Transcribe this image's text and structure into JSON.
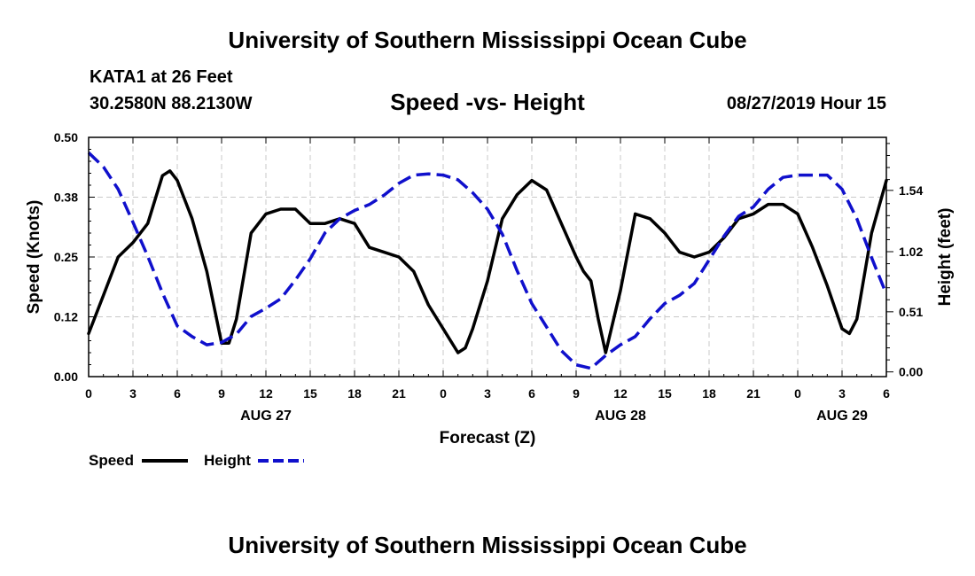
{
  "page": {
    "top_title": "University of Southern Mississippi Ocean Cube",
    "bottom_title": "University of Southern Mississippi Ocean Cube",
    "station": "KATA1 at 26 Feet",
    "coords": "30.2580N 88.2130W",
    "forecast_time": "08/27/2019 Hour 15"
  },
  "chart_data": {
    "type": "line",
    "title": "Speed -vs- Height",
    "xlabel": "Forecast (Z)",
    "ylabel": "Speed (Knots)",
    "y2label": "Height (feet)",
    "x_unit": "hours",
    "xlim": [
      0,
      54
    ],
    "ylim": [
      0,
      0.5
    ],
    "y2lim": [
      -0.04,
      1.99
    ],
    "x_ticks": [
      0,
      3,
      6,
      9,
      12,
      15,
      18,
      21,
      24,
      27,
      30,
      33,
      36,
      39,
      42,
      45,
      48,
      51,
      54
    ],
    "x_tick_labels": [
      "0",
      "3",
      "6",
      "9",
      "12",
      "15",
      "18",
      "21",
      "0",
      "3",
      "6",
      "9",
      "12",
      "15",
      "18",
      "21",
      "0",
      "3",
      "6"
    ],
    "date_labels": [
      {
        "x": 12,
        "label": "AUG 27"
      },
      {
        "x": 36,
        "label": "AUG 28"
      },
      {
        "x": 51,
        "label": "AUG 29"
      }
    ],
    "y_ticks": [
      0,
      0.125,
      0.25,
      0.375,
      0.5
    ],
    "y_tick_labels": [
      "0.00",
      "0.12",
      "0.25",
      "0.38",
      "0.50"
    ],
    "y2_ticks": [
      0,
      0.51,
      1.02,
      1.54
    ],
    "y2_tick_labels": [
      "0.00",
      "0.51",
      "1.02",
      "1.54"
    ],
    "grid": true,
    "legend_position": "bottom-left",
    "series": [
      {
        "name": "Speed",
        "axis": "left",
        "color": "#000000",
        "dash": "solid",
        "x": [
          0,
          1,
          2,
          3,
          4,
          5,
          5.5,
          6,
          7,
          8,
          9,
          9.5,
          10,
          11,
          12,
          13,
          14,
          15,
          16,
          17,
          18,
          19,
          20,
          21,
          22,
          23,
          24,
          25,
          25.5,
          26,
          27,
          28,
          29,
          30,
          31,
          32,
          33,
          33.5,
          34,
          34.5,
          35,
          36,
          37,
          38,
          39,
          40,
          41,
          42,
          43,
          44,
          45,
          46,
          47,
          48,
          49,
          50,
          51,
          51.5,
          52,
          53,
          54
        ],
        "values": [
          0.09,
          0.17,
          0.25,
          0.28,
          0.32,
          0.42,
          0.43,
          0.41,
          0.33,
          0.22,
          0.07,
          0.07,
          0.12,
          0.3,
          0.34,
          0.35,
          0.35,
          0.32,
          0.32,
          0.33,
          0.32,
          0.27,
          0.26,
          0.25,
          0.22,
          0.15,
          0.1,
          0.05,
          0.06,
          0.1,
          0.2,
          0.33,
          0.38,
          0.41,
          0.39,
          0.32,
          0.25,
          0.22,
          0.2,
          0.12,
          0.05,
          0.18,
          0.34,
          0.33,
          0.3,
          0.26,
          0.25,
          0.26,
          0.29,
          0.33,
          0.34,
          0.36,
          0.36,
          0.34,
          0.27,
          0.19,
          0.1,
          0.09,
          0.12,
          0.3,
          0.41
        ]
      },
      {
        "name": "Height",
        "axis": "right",
        "color": "#1010cc",
        "dash": "dashed",
        "x": [
          0,
          1,
          2,
          3,
          4,
          5,
          6,
          7,
          8,
          9,
          10,
          11,
          12,
          13,
          14,
          15,
          16,
          17,
          18,
          19,
          20,
          21,
          22,
          23,
          24,
          25,
          26,
          27,
          28,
          29,
          30,
          31,
          32,
          33,
          34,
          35,
          36,
          37,
          38,
          39,
          40,
          41,
          42,
          43,
          44,
          45,
          46,
          47,
          48,
          49,
          50,
          51,
          52,
          53,
          54
        ],
        "values": [
          1.86,
          1.74,
          1.55,
          1.27,
          0.98,
          0.67,
          0.39,
          0.3,
          0.23,
          0.25,
          0.32,
          0.47,
          0.54,
          0.62,
          0.78,
          0.96,
          1.18,
          1.3,
          1.37,
          1.42,
          1.5,
          1.6,
          1.67,
          1.68,
          1.67,
          1.63,
          1.52,
          1.38,
          1.17,
          0.86,
          0.58,
          0.38,
          0.18,
          0.06,
          0.03,
          0.14,
          0.23,
          0.3,
          0.45,
          0.58,
          0.65,
          0.75,
          0.95,
          1.15,
          1.32,
          1.4,
          1.55,
          1.65,
          1.67,
          1.67,
          1.67,
          1.55,
          1.3,
          0.97,
          0.66
        ]
      }
    ]
  }
}
